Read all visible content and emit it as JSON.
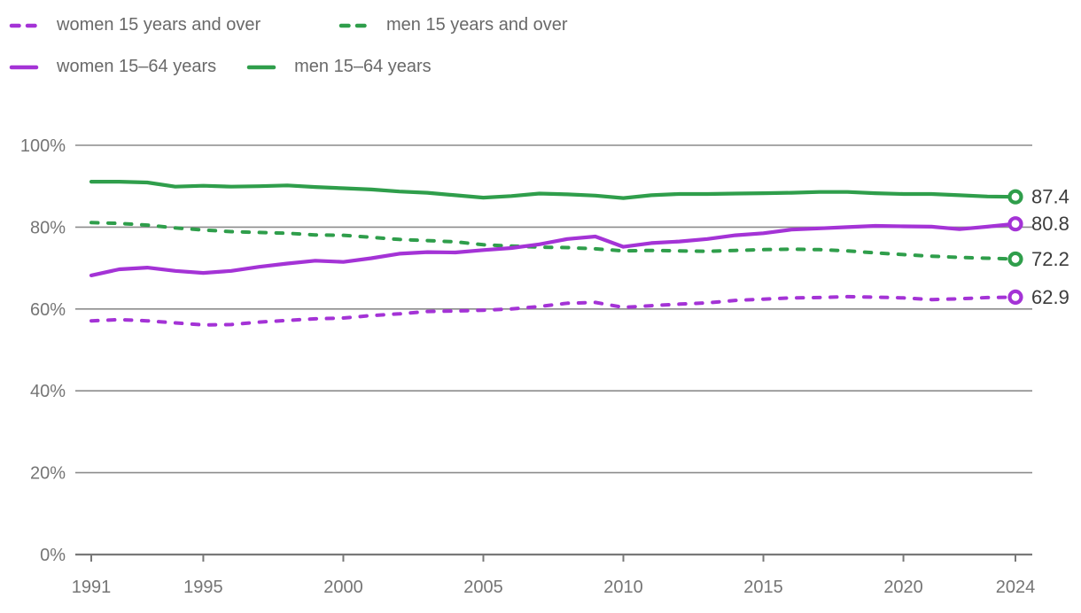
{
  "colors": {
    "purple": "#a433d6",
    "green": "#2f9e4b",
    "grid": "#8c8c8c",
    "axis_line": "#787878",
    "axis_text": "#757575",
    "legend_text": "#696969",
    "end_label_text": "#3c3c3c",
    "background": "#ffffff"
  },
  "chart_data": {
    "type": "line",
    "title": "",
    "xlabel": "",
    "ylabel": "",
    "xlim": [
      1991,
      2024
    ],
    "ylim": [
      0,
      100
    ],
    "grid": "horizontal",
    "legend_position": "top",
    "x": [
      1991,
      1992,
      1993,
      1994,
      1995,
      1996,
      1997,
      1998,
      1999,
      2000,
      2001,
      2002,
      2003,
      2004,
      2005,
      2006,
      2007,
      2008,
      2009,
      2010,
      2011,
      2012,
      2013,
      2014,
      2015,
      2016,
      2017,
      2018,
      2019,
      2020,
      2021,
      2022,
      2023,
      2024
    ],
    "x_tick_values": [
      1991,
      1995,
      2000,
      2005,
      2010,
      2015,
      2020,
      2024
    ],
    "x_tick_labels": [
      "1991",
      "1995",
      "2000",
      "2005",
      "2010",
      "2015",
      "2020",
      "2024"
    ],
    "y_tick_values": [
      0,
      20,
      40,
      60,
      80,
      100
    ],
    "y_tick_labels": [
      "0%",
      "20%",
      "40%",
      "60%",
      "80%",
      "100%"
    ],
    "series": [
      {
        "id": "women-15plus",
        "name": "women 15 years and over",
        "color": "#a433d6",
        "style": "dashed",
        "end_label": "62.9",
        "values": [
          57.1,
          57.4,
          57.1,
          56.6,
          56.1,
          56.2,
          56.8,
          57.2,
          57.6,
          57.8,
          58.4,
          58.8,
          59.4,
          59.5,
          59.7,
          60.0,
          60.6,
          61.4,
          61.6,
          60.4,
          60.8,
          61.2,
          61.5,
          62.1,
          62.4,
          62.7,
          62.8,
          63.0,
          62.9,
          62.7,
          62.3,
          62.5,
          62.8,
          62.9
        ]
      },
      {
        "id": "men-15plus",
        "name": "men 15 years and over",
        "color": "#2f9e4b",
        "style": "dashed",
        "end_label": "72.2",
        "values": [
          81.1,
          80.9,
          80.5,
          79.8,
          79.3,
          78.9,
          78.7,
          78.5,
          78.1,
          78.0,
          77.5,
          77.0,
          76.7,
          76.4,
          75.7,
          75.4,
          75.1,
          75.0,
          74.7,
          74.2,
          74.3,
          74.2,
          74.1,
          74.3,
          74.5,
          74.6,
          74.5,
          74.2,
          73.7,
          73.3,
          72.9,
          72.6,
          72.4,
          72.2
        ]
      },
      {
        "id": "women-15-64",
        "name": "women 15–64 years",
        "color": "#a433d6",
        "style": "solid",
        "end_label": "80.8",
        "values": [
          68.2,
          69.7,
          70.1,
          69.3,
          68.8,
          69.3,
          70.3,
          71.1,
          71.8,
          71.5,
          72.4,
          73.5,
          73.9,
          73.8,
          74.4,
          74.9,
          75.8,
          77.1,
          77.7,
          75.2,
          76.1,
          76.5,
          77.1,
          78.0,
          78.5,
          79.4,
          79.7,
          80.0,
          80.3,
          80.2,
          80.1,
          79.5,
          80.1,
          80.8
        ]
      },
      {
        "id": "men-15-64",
        "name": "men 15–64 years",
        "color": "#2f9e4b",
        "style": "solid",
        "end_label": "87.4",
        "values": [
          91.1,
          91.1,
          90.9,
          89.9,
          90.1,
          89.9,
          90.0,
          90.2,
          89.8,
          89.5,
          89.2,
          88.7,
          88.4,
          87.8,
          87.2,
          87.6,
          88.2,
          88.0,
          87.7,
          87.1,
          87.8,
          88.1,
          88.1,
          88.2,
          88.3,
          88.4,
          88.6,
          88.6,
          88.3,
          88.1,
          88.1,
          87.8,
          87.5,
          87.4
        ]
      }
    ],
    "legend_order": [
      "women-15plus",
      "men-15plus",
      "women-15-64",
      "men-15-64"
    ]
  }
}
